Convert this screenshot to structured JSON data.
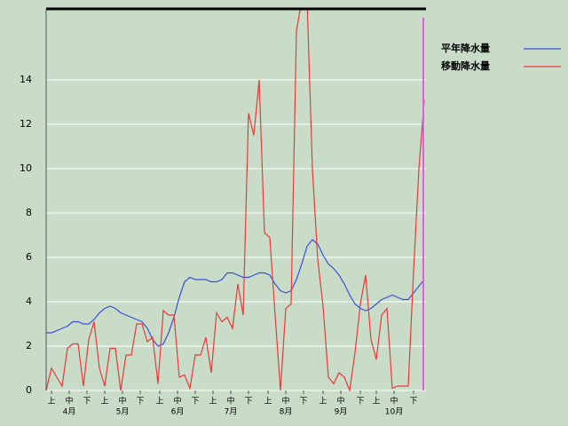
{
  "chart_data": {
    "type": "line",
    "x": [
      0,
      3,
      6,
      9,
      12,
      15,
      18,
      21,
      24,
      27,
      30,
      33,
      36,
      39,
      42,
      45,
      48,
      51,
      54,
      57,
      60,
      63,
      66,
      69,
      72,
      75,
      78,
      81,
      84,
      87,
      90,
      93,
      96,
      99,
      102,
      105,
      108,
      111,
      114,
      117,
      120,
      123,
      126,
      129,
      132,
      135,
      138,
      141,
      144,
      147,
      150,
      153,
      156,
      159,
      162,
      165,
      168,
      171,
      174,
      177,
      180,
      183,
      186,
      189,
      192,
      195,
      198,
      201,
      204,
      207,
      210,
      213
    ],
    "xlim": [
      0,
      213
    ],
    "ylim": [
      0,
      17.2
    ],
    "yticks": [
      0,
      2,
      4,
      6,
      8,
      10,
      12,
      14
    ],
    "grid": true,
    "legend": "top-right",
    "xticks": [
      {
        "value": 3,
        "label": "上"
      },
      {
        "value": 13,
        "label": "中"
      },
      {
        "value": 23,
        "label": "下"
      },
      {
        "value": 33,
        "label": "上"
      },
      {
        "value": 43,
        "label": "中"
      },
      {
        "value": 53,
        "label": "下"
      },
      {
        "value": 64,
        "label": "上"
      },
      {
        "value": 74,
        "label": "中"
      },
      {
        "value": 84,
        "label": "下"
      },
      {
        "value": 94,
        "label": "上"
      },
      {
        "value": 104,
        "label": "中"
      },
      {
        "value": 114,
        "label": "下"
      },
      {
        "value": 125,
        "label": "上"
      },
      {
        "value": 135,
        "label": "中"
      },
      {
        "value": 145,
        "label": "下"
      },
      {
        "value": 156,
        "label": "上"
      },
      {
        "value": 166,
        "label": "中"
      },
      {
        "value": 177,
        "label": "下"
      },
      {
        "value": 186,
        "label": "上"
      },
      {
        "value": 196,
        "label": "中"
      },
      {
        "value": 207,
        "label": "下"
      }
    ],
    "month_labels": [
      {
        "value": 13,
        "label": "4月"
      },
      {
        "value": 43,
        "label": "5月"
      },
      {
        "value": 74,
        "label": "6月"
      },
      {
        "value": 104,
        "label": "7月"
      },
      {
        "value": 135,
        "label": "8月"
      },
      {
        "value": 166,
        "label": "9月"
      },
      {
        "value": 196,
        "label": "10月"
      }
    ],
    "series": [
      {
        "name": "平年降水量",
        "color": "#3a4fd8",
        "values": [
          2.6,
          2.6,
          2.7,
          2.8,
          2.9,
          3.1,
          3.1,
          3.0,
          3.0,
          3.2,
          3.5,
          3.7,
          3.8,
          3.7,
          3.5,
          3.4,
          3.3,
          3.2,
          3.1,
          2.8,
          2.3,
          2.0,
          2.1,
          2.6,
          3.3,
          4.2,
          4.9,
          5.1,
          5.0,
          5.0,
          5.0,
          4.9,
          4.9,
          5.0,
          5.3,
          5.3,
          5.2,
          5.1,
          5.1,
          5.2,
          5.3,
          5.3,
          5.2,
          4.8,
          4.5,
          4.4,
          4.5,
          5.0,
          5.7,
          6.5,
          6.8,
          6.6,
          6.1,
          5.7,
          5.5,
          5.2,
          4.8,
          4.3,
          3.9,
          3.7,
          3.6,
          3.7,
          3.9,
          4.1,
          4.2,
          4.3,
          4.2,
          4.1,
          4.1,
          4.4,
          4.7,
          5.0
        ]
      },
      {
        "name": "移動降水量",
        "color": "#e83a3a",
        "values": [
          0,
          1.0,
          0.6,
          0.2,
          1.9,
          2.1,
          2.1,
          0.2,
          2.3,
          3.1,
          1.0,
          0.2,
          1.9,
          1.9,
          0,
          1.6,
          1.6,
          3.0,
          3.0,
          2.2,
          2.4,
          0.3,
          3.6,
          3.4,
          3.4,
          0.6,
          0.7,
          0.1,
          1.6,
          1.6,
          2.4,
          0.8,
          3.5,
          3.1,
          3.3,
          2.8,
          4.8,
          3.4,
          12.5,
          11.5,
          14.0,
          7.1,
          6.9,
          3.4,
          0,
          3.7,
          3.9,
          16.2,
          17.6,
          17.6,
          10.0,
          5.9,
          3.8,
          0.6,
          0.3,
          0.8,
          0.6,
          0,
          1.7,
          3.9,
          5.2,
          2.3,
          1.4,
          3.4,
          3.7,
          0.1,
          0.2,
          0.2,
          0.2,
          5.4,
          10.0,
          13.1
        ]
      }
    ]
  }
}
